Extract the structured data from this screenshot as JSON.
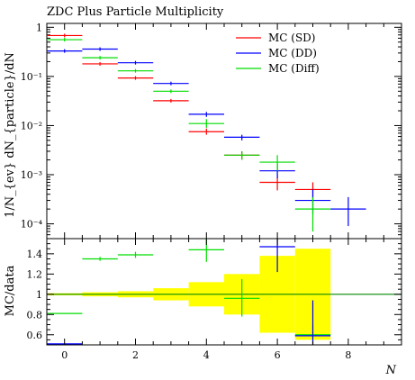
{
  "chart_data": {
    "type": "scatter",
    "title": "ZDC Plus Particle Multiplicity",
    "xlabel": "N",
    "ylabel_main": "1/N_{ev} dN_{particle}/dN",
    "ylabel_ratio": "MC/data",
    "xlim": [
      -0.5,
      9.5
    ],
    "xticks": [
      0,
      2,
      4,
      6,
      8
    ],
    "main": {
      "yscale": "log",
      "ylim": [
        5e-05,
        1.2
      ],
      "yticks": [
        {
          "value": 1,
          "label": "1"
        },
        {
          "value": 0.1,
          "label": "10⁻¹"
        },
        {
          "value": 0.01,
          "label": "10⁻²"
        },
        {
          "value": 0.001,
          "label": "10⁻³"
        },
        {
          "value": 0.0001,
          "label": "10⁻⁴"
        }
      ],
      "legend_position": "top-right",
      "series": [
        {
          "name": "MC (SD)",
          "color": "#ff0000",
          "points": [
            {
              "x": 0,
              "y": 0.68
            },
            {
              "x": 1,
              "y": 0.18
            },
            {
              "x": 2,
              "y": 0.093
            },
            {
              "x": 3,
              "y": 0.032
            },
            {
              "x": 4,
              "y": 0.0075,
              "err": [
                0.0065,
                0.0087
              ]
            },
            {
              "x": 5,
              "y": 0.0025,
              "err": [
                0.0021,
                0.003
              ]
            },
            {
              "x": 6,
              "y": 0.0007,
              "err": [
                0.00048,
                0.00098
              ]
            },
            {
              "x": 7,
              "y": 0.0005,
              "err": [
                0.00033,
                0.0007
              ]
            }
          ]
        },
        {
          "name": "MC (DD)",
          "color": "#0000ff",
          "points": [
            {
              "x": 0,
              "y": 0.33
            },
            {
              "x": 1,
              "y": 0.36
            },
            {
              "x": 2,
              "y": 0.19
            },
            {
              "x": 3,
              "y": 0.072
            },
            {
              "x": 4,
              "y": 0.017,
              "err": [
                0.015,
                0.019
              ]
            },
            {
              "x": 5,
              "y": 0.0058,
              "err": [
                0.005,
                0.0065
              ]
            },
            {
              "x": 6,
              "y": 0.0012,
              "err": [
                0.00085,
                0.0017
              ]
            },
            {
              "x": 7,
              "y": 0.0003,
              "err": [
                0.00016,
                0.0005
              ]
            },
            {
              "x": 8,
              "y": 0.0002,
              "err": [
                9e-05,
                0.00035
              ]
            }
          ]
        },
        {
          "name": "MC (Diff)",
          "color": "#00dd00",
          "points": [
            {
              "x": 0,
              "y": 0.56
            },
            {
              "x": 1,
              "y": 0.24
            },
            {
              "x": 2,
              "y": 0.13
            },
            {
              "x": 3,
              "y": 0.05
            },
            {
              "x": 4,
              "y": 0.011,
              "err": [
                0.009,
                0.0135
              ]
            },
            {
              "x": 5,
              "y": 0.0025,
              "err": [
                0.002,
                0.003
              ]
            },
            {
              "x": 6,
              "y": 0.0018,
              "err": [
                0.0012,
                0.0025
              ]
            },
            {
              "x": 7,
              "y": 0.0002,
              "err": [
                7e-05,
                0.00035
              ]
            }
          ]
        }
      ]
    },
    "ratio": {
      "ylim": [
        0.5,
        1.55
      ],
      "yticks": [
        0.6,
        0.8,
        1,
        1.2,
        1.4
      ],
      "band_color": "#ffff00",
      "band": [
        {
          "x": 0,
          "lo": 0.99,
          "hi": 1.01
        },
        {
          "x": 1,
          "lo": 0.98,
          "hi": 1.02
        },
        {
          "x": 2,
          "lo": 0.97,
          "hi": 1.03
        },
        {
          "x": 3,
          "lo": 0.94,
          "hi": 1.06
        },
        {
          "x": 4,
          "lo": 0.88,
          "hi": 1.12
        },
        {
          "x": 5,
          "lo": 0.8,
          "hi": 1.2
        },
        {
          "x": 6,
          "lo": 0.62,
          "hi": 1.38
        },
        {
          "x": 7,
          "lo": 0.55,
          "hi": 1.45
        }
      ],
      "line_color": "#008800",
      "series": [
        {
          "name": "MC (Diff)",
          "color": "#00dd00",
          "points": [
            {
              "x": 0,
              "y": 0.81
            },
            {
              "x": 1,
              "y": 1.35,
              "err": [
                1.33,
                1.37
              ]
            },
            {
              "x": 2,
              "y": 1.39,
              "err": [
                1.36,
                1.42
              ]
            },
            {
              "x": 4,
              "y": 1.44,
              "err": [
                1.32,
                1.55
              ]
            },
            {
              "x": 5,
              "y": 0.96,
              "err": [
                0.78,
                1.15
              ]
            },
            {
              "x": 7,
              "y": 0.6,
              "err": [
                0.5,
                0.7
              ]
            }
          ]
        },
        {
          "name": "MC (DD)",
          "color": "#0000ff",
          "points": [
            {
              "x": 0,
              "y": 0.51
            },
            {
              "x": 6,
              "y": 1.47,
              "err": [
                1.22,
                1.55
              ]
            },
            {
              "x": 7,
              "y": 0.59,
              "err": [
                0.5,
                0.94
              ]
            }
          ]
        }
      ]
    }
  }
}
